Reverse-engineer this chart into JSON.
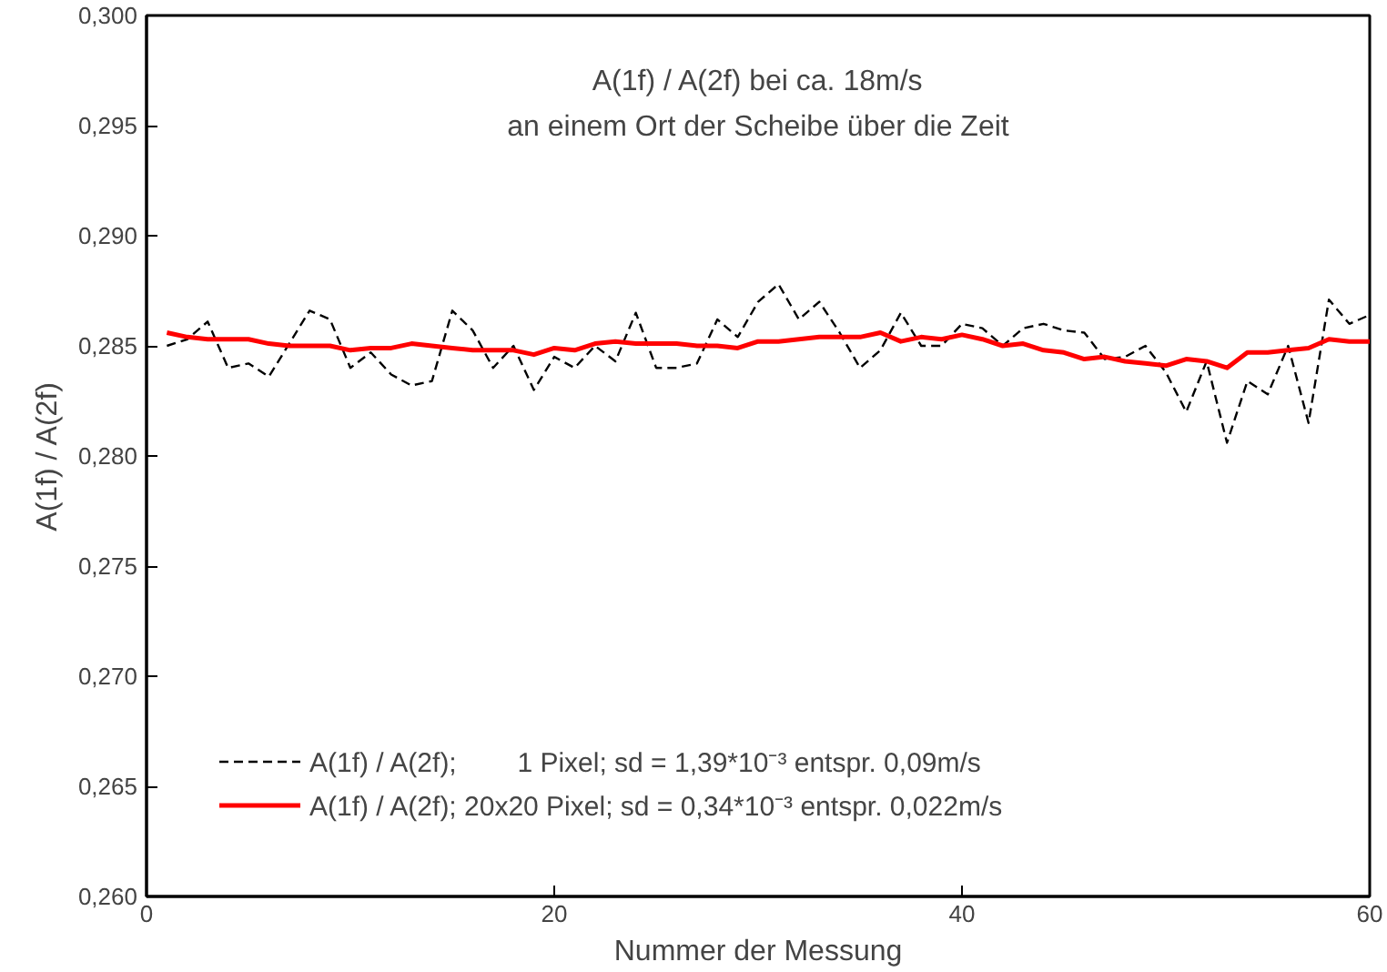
{
  "chart_data": {
    "type": "line",
    "title": "A(1f) / A(2f) bei ca. 18m/s",
    "subtitle": "an einem Ort der Scheibe über die Zeit",
    "xlabel": "Nummer der Messung",
    "ylabel": "A(1f) / A(2f)",
    "x": [
      1,
      2,
      3,
      4,
      5,
      6,
      7,
      8,
      9,
      10,
      11,
      12,
      13,
      14,
      15,
      16,
      17,
      18,
      19,
      20,
      21,
      22,
      23,
      24,
      25,
      26,
      27,
      28,
      29,
      30,
      31,
      32,
      33,
      34,
      35,
      36,
      37,
      38,
      39,
      40,
      41,
      42,
      43,
      44,
      45,
      46,
      47,
      48,
      49,
      50,
      51,
      52,
      53,
      54,
      55,
      56,
      57,
      58,
      59,
      60
    ],
    "series": [
      {
        "name": "A(1f) / A(2f);        1 Pixel; sd = 1,39*10⁻³ entspr. 0,09m/s",
        "color": "#000000",
        "line_style": "dashed",
        "values": [
          0.285,
          0.2853,
          0.2861,
          0.284,
          0.2842,
          0.2836,
          0.2851,
          0.2866,
          0.2862,
          0.284,
          0.2847,
          0.2837,
          0.2832,
          0.2834,
          0.2866,
          0.2857,
          0.284,
          0.285,
          0.283,
          0.2845,
          0.284,
          0.285,
          0.2843,
          0.2865,
          0.284,
          0.284,
          0.2842,
          0.2862,
          0.2854,
          0.287,
          0.2878,
          0.2862,
          0.287,
          0.2856,
          0.284,
          0.2848,
          0.2865,
          0.285,
          0.285,
          0.286,
          0.2858,
          0.285,
          0.2858,
          0.286,
          0.2857,
          0.2856,
          0.2844,
          0.2845,
          0.285,
          0.2838,
          0.282,
          0.2843,
          0.2806,
          0.2834,
          0.2828,
          0.285,
          0.2815,
          0.2871,
          0.286,
          0.2864
        ]
      },
      {
        "name": "A(1f) / A(2f); 20x20 Pixel; sd = 0,34*10⁻³ entspr. 0,022m/s",
        "color": "#ff0000",
        "line_style": "solid",
        "values": [
          0.2856,
          0.2854,
          0.2853,
          0.2853,
          0.2853,
          0.2851,
          0.285,
          0.285,
          0.285,
          0.2848,
          0.2849,
          0.2849,
          0.2851,
          0.285,
          0.2849,
          0.2848,
          0.2848,
          0.2848,
          0.2846,
          0.2849,
          0.2848,
          0.2851,
          0.2852,
          0.2851,
          0.2851,
          0.2851,
          0.285,
          0.285,
          0.2849,
          0.2852,
          0.2852,
          0.2853,
          0.2854,
          0.2854,
          0.2854,
          0.2856,
          0.2852,
          0.2854,
          0.2853,
          0.2855,
          0.2853,
          0.285,
          0.2851,
          0.2848,
          0.2847,
          0.2844,
          0.2845,
          0.2843,
          0.2842,
          0.2841,
          0.2844,
          0.2843,
          0.284,
          0.2847,
          0.2847,
          0.2848,
          0.2849,
          0.2853,
          0.2852,
          0.2852
        ]
      }
    ],
    "xlim": [
      0,
      60
    ],
    "xticks": [
      0,
      20,
      40,
      60
    ],
    "ylim": [
      0.26,
      0.3
    ],
    "yticks": [
      {
        "value": 0.26,
        "label": "0,260"
      },
      {
        "value": 0.265,
        "label": "0,265"
      },
      {
        "value": 0.27,
        "label": "0,270"
      },
      {
        "value": 0.275,
        "label": "0,275"
      },
      {
        "value": 0.28,
        "label": "0,280"
      },
      {
        "value": 0.285,
        "label": "0,285"
      },
      {
        "value": 0.29,
        "label": "0,290"
      },
      {
        "value": 0.295,
        "label": "0,295"
      },
      {
        "value": 0.3,
        "label": "0,300"
      }
    ],
    "grid": false,
    "legend": "bottom left",
    "marker": "none"
  }
}
